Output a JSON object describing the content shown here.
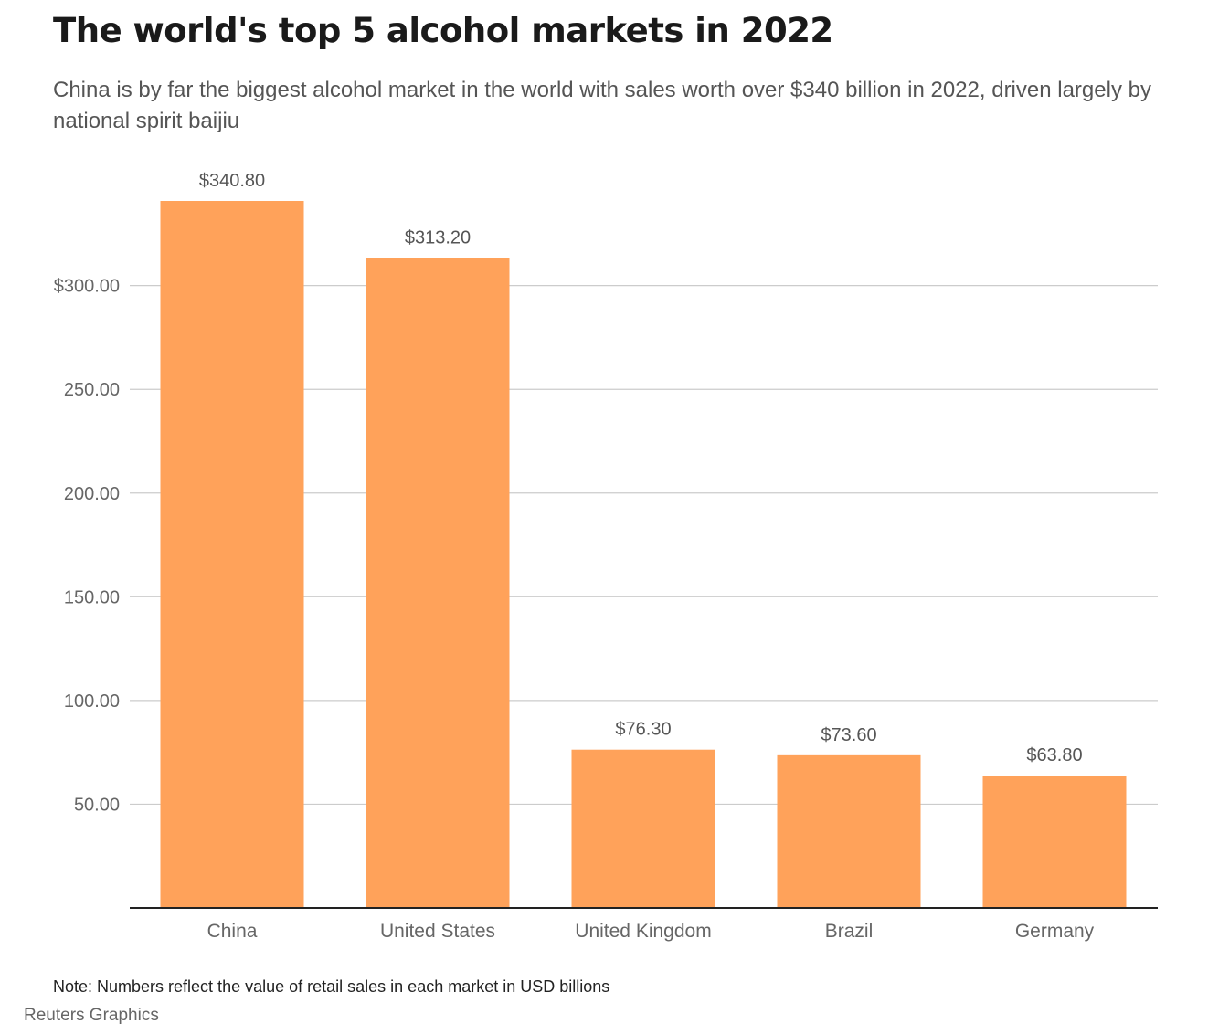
{
  "header": {
    "title": "The world's top 5 alcohol markets in 2022",
    "subtitle": "China is by far the biggest alcohol market in the world with sales worth over $340 billion in 2022, driven largely by national spirit baijiu"
  },
  "chart_data": {
    "type": "bar",
    "categories": [
      "China",
      "United States",
      "United Kingdom",
      "Brazil",
      "Germany"
    ],
    "values": [
      340.8,
      313.2,
      76.3,
      73.6,
      63.8
    ],
    "data_labels": [
      "$340.80",
      "$313.20",
      "$76.30",
      "$73.60",
      "$63.80"
    ],
    "yticks": [
      50,
      100,
      150,
      200,
      250,
      300
    ],
    "ytick_labels": [
      "50.00",
      "100.00",
      "150.00",
      "200.00",
      "250.00",
      "$300.00"
    ],
    "ylim": [
      0,
      340.8
    ],
    "grid": true,
    "bar_color": "#ffa25a",
    "grid_color": "#cccccc",
    "axis_color": "#222222"
  },
  "footer": {
    "note": "Note: Numbers reflect the value of retail sales in each market in USD billions",
    "source": "Reuters Graphics"
  }
}
